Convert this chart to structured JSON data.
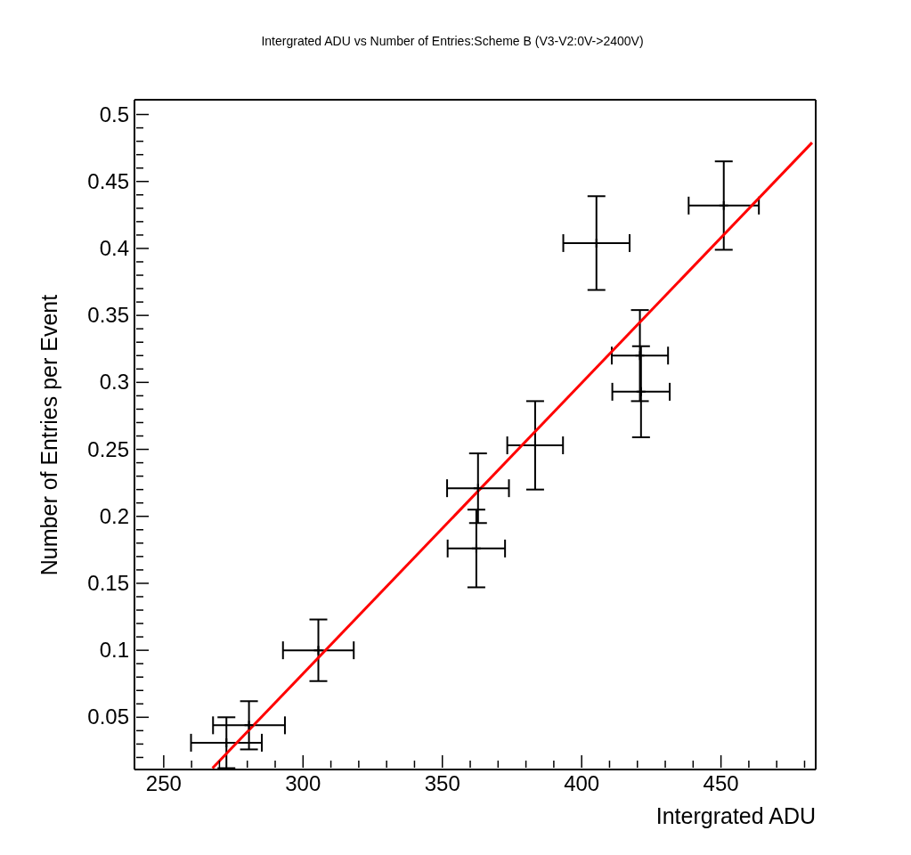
{
  "chart_data": {
    "type": "scatter",
    "title": "Intergrated ADU vs Number of Entries:Scheme B (V3-V2:0V->2400V)",
    "xlabel": "Intergrated ADU",
    "ylabel": "Number of Entries per Event",
    "xlim": [
      239.5,
      484
    ],
    "ylim": [
      0.011,
      0.511
    ],
    "xticks": [
      250,
      {
        "value": 260,
        "label": null
      },
      {
        "value": 270,
        "label": null
      },
      {
        "value": 280,
        "label": null
      },
      {
        "value": 290,
        "label": null
      },
      300,
      {
        "value": 310,
        "label": null
      },
      {
        "value": 320,
        "label": null
      },
      {
        "value": 330,
        "label": null
      },
      {
        "value": 340,
        "label": null
      },
      350,
      {
        "value": 360,
        "label": null
      },
      {
        "value": 370,
        "label": null
      },
      {
        "value": 380,
        "label": null
      },
      {
        "value": 390,
        "label": null
      },
      400,
      {
        "value": 410,
        "label": null
      },
      {
        "value": 420,
        "label": null
      },
      {
        "value": 430,
        "label": null
      },
      {
        "value": 440,
        "label": null
      },
      450,
      {
        "value": 460,
        "label": null
      },
      {
        "value": 470,
        "label": null
      },
      {
        "value": 480,
        "label": null
      }
    ],
    "yticks": [
      {
        "value": 0.02,
        "label": null
      },
      {
        "value": 0.03,
        "label": null
      },
      {
        "value": 0.04,
        "label": null
      },
      0.05,
      {
        "value": 0.06,
        "label": null
      },
      {
        "value": 0.07,
        "label": null
      },
      {
        "value": 0.08,
        "label": null
      },
      {
        "value": 0.09,
        "label": null
      },
      0.1,
      {
        "value": 0.11,
        "label": null
      },
      {
        "value": 0.12,
        "label": null
      },
      {
        "value": 0.13,
        "label": null
      },
      {
        "value": 0.14,
        "label": null
      },
      0.15,
      {
        "value": 0.16,
        "label": null
      },
      {
        "value": 0.17,
        "label": null
      },
      {
        "value": 0.18,
        "label": null
      },
      {
        "value": 0.19,
        "label": null
      },
      0.2,
      {
        "value": 0.21,
        "label": null
      },
      {
        "value": 0.22,
        "label": null
      },
      {
        "value": 0.23,
        "label": null
      },
      {
        "value": 0.24,
        "label": null
      },
      0.25,
      {
        "value": 0.26,
        "label": null
      },
      {
        "value": 0.27,
        "label": null
      },
      {
        "value": 0.28,
        "label": null
      },
      {
        "value": 0.29,
        "label": null
      },
      0.3,
      {
        "value": 0.31,
        "label": null
      },
      {
        "value": 0.32,
        "label": null
      },
      {
        "value": 0.33,
        "label": null
      },
      {
        "value": 0.34,
        "label": null
      },
      0.35,
      {
        "value": 0.36,
        "label": null
      },
      {
        "value": 0.37,
        "label": null
      },
      {
        "value": 0.38,
        "label": null
      },
      {
        "value": 0.39,
        "label": null
      },
      0.4,
      {
        "value": 0.41,
        "label": null
      },
      {
        "value": 0.42,
        "label": null
      },
      {
        "value": 0.43,
        "label": null
      },
      {
        "value": 0.44,
        "label": null
      },
      0.45,
      {
        "value": 0.46,
        "label": null
      },
      {
        "value": 0.47,
        "label": null
      },
      {
        "value": 0.48,
        "label": null
      },
      {
        "value": 0.49,
        "label": null
      },
      0.5
    ],
    "grid": false,
    "legend": false,
    "marker": "cross",
    "series": [
      {
        "color": "#000000",
        "x": [
          272.5,
          280.6,
          305.5,
          362.2,
          362.8,
          383.3,
          405.3,
          420.9,
          421.3,
          451.0
        ],
        "values": [
          0.031,
          0.044,
          0.1,
          0.176,
          0.221,
          0.253,
          0.404,
          0.32,
          0.293,
          0.432
        ],
        "errors": [
          0.019,
          0.018,
          0.023,
          0.029,
          0.026,
          0.033,
          0.035,
          0.034,
          0.034,
          0.033
        ],
        "xerrors": [
          12.7,
          12.9,
          12.7,
          10.3,
          11.1,
          10.0,
          11.9,
          10.1,
          10.3,
          12.6
        ]
      },
      {
        "type": "line",
        "marker": "none",
        "color": "#ff0000",
        "x": [
          267.5,
          482.7
        ],
        "values": [
          0.012,
          0.479
        ]
      }
    ]
  }
}
